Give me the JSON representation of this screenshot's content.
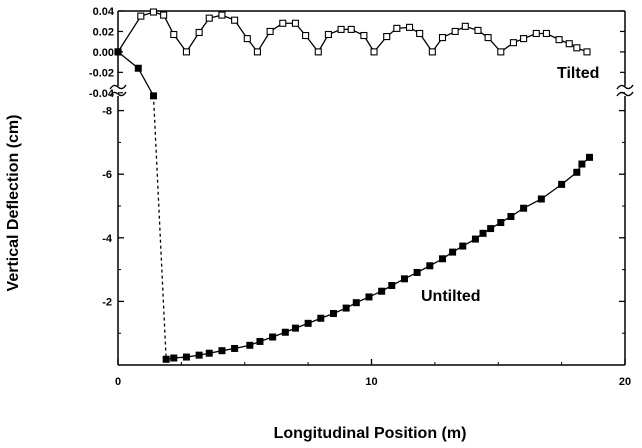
{
  "chart_data": {
    "type": "line",
    "xlabel": "Longitudinal Position (m)",
    "ylabel": "Vertical Deflection (cm)",
    "xlim": [
      0,
      20
    ],
    "x_ticks": [
      "0",
      "10",
      "20"
    ],
    "axis_break": "broken y-axis between the upper and lower panels",
    "upper_panel": {
      "ylim": [
        -0.05,
        0.04
      ],
      "y_ticks": [
        "0.04",
        "0.02",
        "0.00",
        "-0.02",
        "-0.04"
      ]
    },
    "lower_panel": {
      "ylim": [
        -8,
        0
      ],
      "y_ticks": [
        "-2",
        "-4",
        "-6",
        "-8"
      ]
    },
    "series": [
      {
        "name": "Tilted",
        "panel": "upper",
        "marker": "open-square",
        "x": [
          0,
          0.9,
          1.4,
          1.8,
          2.2,
          2.7,
          3.2,
          3.6,
          4.1,
          4.6,
          5.1,
          5.5,
          6.0,
          6.5,
          7.0,
          7.4,
          7.9,
          8.3,
          8.8,
          9.2,
          9.7,
          10.1,
          10.6,
          11.0,
          11.5,
          11.9,
          12.4,
          12.8,
          13.3,
          13.7,
          14.2,
          14.6,
          15.1,
          15.6,
          16.0,
          16.5,
          16.9,
          17.4,
          17.8,
          18.1,
          18.5
        ],
        "y": [
          0.0,
          0.035,
          0.039,
          0.036,
          0.017,
          0.0,
          0.019,
          0.033,
          0.036,
          0.031,
          0.013,
          0.0,
          0.02,
          0.028,
          0.028,
          0.016,
          0.0,
          0.017,
          0.022,
          0.022,
          0.016,
          0.0,
          0.015,
          0.023,
          0.024,
          0.018,
          0.0,
          0.014,
          0.02,
          0.025,
          0.021,
          0.014,
          0.0,
          0.009,
          0.013,
          0.018,
          0.018,
          0.012,
          0.008,
          0.004,
          0.0
        ]
      },
      {
        "name": "Untilted",
        "panel": "lower",
        "marker": "filled-square",
        "x_upper_panel": [
          0,
          0.8,
          1.4
        ],
        "y_upper_panel_cm": [
          0.0,
          -0.016,
          -0.043
        ],
        "x": [
          1.9,
          2.2,
          2.7,
          3.2,
          3.6,
          4.1,
          4.6,
          5.2,
          5.6,
          6.1,
          6.6,
          7.0,
          7.5,
          8.0,
          8.5,
          9.0,
          9.4,
          9.9,
          10.4,
          10.8,
          11.3,
          11.8,
          12.3,
          12.8,
          13.2,
          13.6,
          14.1,
          14.4,
          14.7,
          15.1,
          15.5,
          16.0,
          16.7,
          17.5,
          18.1,
          18.3,
          18.6
        ],
        "y": [
          -0.18,
          -0.22,
          -0.25,
          -0.31,
          -0.37,
          -0.45,
          -0.52,
          -0.62,
          -0.74,
          -0.88,
          -1.03,
          -1.16,
          -1.31,
          -1.47,
          -1.62,
          -1.79,
          -1.96,
          -2.14,
          -2.32,
          -2.5,
          -2.71,
          -2.91,
          -3.12,
          -3.34,
          -3.55,
          -3.74,
          -3.96,
          -4.14,
          -4.29,
          -4.48,
          -4.67,
          -4.93,
          -5.22,
          -5.68,
          -6.06,
          -6.32,
          -6.53
        ]
      }
    ],
    "annotations": [
      "Tilted",
      "Untilted"
    ]
  }
}
